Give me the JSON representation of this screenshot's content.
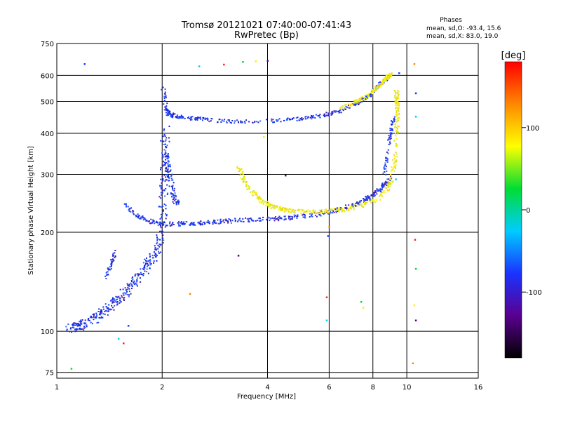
{
  "chart_data": {
    "type": "scatter",
    "title": "Tromsø 20121021 07:40:00-07:41:43",
    "subtitle": "RwPretec (Bp)",
    "xlabel": "Frequency [MHz]",
    "ylabel": "Stationary phase Virtual Height [km]",
    "x_scale": "log",
    "y_scale": "log",
    "xlim": [
      1,
      16
    ],
    "ylim": [
      72,
      750
    ],
    "x_ticks": [
      1,
      2,
      4,
      6,
      8,
      10,
      16
    ],
    "y_ticks": [
      75,
      100,
      200,
      300,
      400,
      500,
      600,
      750
    ],
    "grid": true,
    "legend_title": "Phases",
    "legend_lines": [
      "mean, sd,O: -93.4, 15.6",
      "mean, sd,X:  83.0, 19.0"
    ],
    "colorbar": {
      "unit": "[deg]",
      "range": [
        -180,
        180
      ],
      "ticks": [
        100,
        0,
        -100
      ],
      "tick_labels": [
        "100",
        "0",
        "-100"
      ],
      "colors": [
        "#000000",
        "#5a0090",
        "#1a33ff",
        "#00ccff",
        "#00dd33",
        "#ffff00",
        "#ff8800",
        "#ff0000"
      ]
    },
    "series": [
      {
        "name": "O",
        "phase_mean": -93.4,
        "traces": [
          {
            "x": [
              1.08,
              1.15,
              1.25,
              1.35,
              1.45,
              1.55,
              1.65,
              1.75,
              1.85,
              1.95,
              2.0,
              2.02,
              2.04
            ],
            "y": [
              103,
              104,
              108,
              115,
              122,
              130,
              140,
              152,
              165,
              185,
              220,
              300,
              420
            ]
          },
          {
            "x": [
              2.0,
              2.04,
              2.08,
              2.14,
              2.25,
              2.5,
              2.8,
              3.2,
              3.8,
              4.5,
              5.2,
              5.8,
              6.4,
              7.0,
              7.6,
              8.1,
              8.5,
              8.8
            ],
            "y": [
              560,
              480,
              460,
              455,
              450,
              445,
              440,
              436,
              437,
              441,
              448,
              457,
              470,
              490,
              515,
              545,
              575,
              600
            ]
          },
          {
            "x": [
              1.55,
              1.7,
              1.85,
              2.0,
              2.2,
              2.5,
              2.8,
              3.2,
              3.8,
              4.5,
              5.3,
              6.0,
              6.6,
              7.2,
              7.7,
              8.2,
              8.6,
              8.9
            ],
            "y": [
              245,
              225,
              217,
              214,
              213,
              214,
              216,
              218,
              220,
              222,
              226,
              232,
              238,
              246,
              255,
              266,
              280,
              295
            ]
          },
          {
            "x": [
              2.0,
              2.05,
              2.1,
              2.15,
              2.2
            ],
            "y": [
              380,
              330,
              290,
              262,
              245
            ]
          },
          {
            "x": [
              8.6,
              8.7,
              8.8,
              8.9,
              9.0,
              9.1
            ],
            "y": [
              300,
              330,
              360,
              390,
              420,
              450
            ]
          },
          {
            "x": [
              1.38,
              1.42,
              1.46
            ],
            "y": [
              145,
              160,
              175
            ]
          }
        ]
      },
      {
        "name": "X",
        "phase_mean": 83.0,
        "traces": [
          {
            "x": [
              3.3,
              3.4,
              3.6,
              3.8,
              4.0,
              4.3,
              4.6,
              5.0,
              5.4,
              5.9,
              6.4,
              7.0,
              7.6,
              8.2,
              8.7,
              9.0,
              9.2,
              9.3
            ],
            "y": [
              320,
              290,
              266,
              252,
              243,
              238,
              234,
              232,
              232,
              233,
              235,
              239,
              245,
              254,
              268,
              290,
              330,
              400
            ]
          },
          {
            "x": [
              9.3,
              9.35,
              9.35,
              9.3
            ],
            "y": [
              400,
              450,
              500,
              540
            ]
          },
          {
            "x": [
              6.4,
              7.0,
              7.5,
              8.0,
              8.4,
              8.7,
              9.0
            ],
            "y": [
              480,
              495,
              515,
              540,
              565,
              590,
              610
            ]
          }
        ]
      }
    ],
    "scattered_points": [
      {
        "x": 1.2,
        "y": 650
      },
      {
        "x": 2.55,
        "y": 640
      },
      {
        "x": 3.0,
        "y": 648
      },
      {
        "x": 3.4,
        "y": 660
      },
      {
        "x": 3.7,
        "y": 663
      },
      {
        "x": 4.0,
        "y": 665
      },
      {
        "x": 10.5,
        "y": 650
      },
      {
        "x": 10.6,
        "y": 530
      },
      {
        "x": 10.6,
        "y": 450
      },
      {
        "x": 10.55,
        "y": 190
      },
      {
        "x": 10.6,
        "y": 155
      },
      {
        "x": 10.5,
        "y": 120
      },
      {
        "x": 10.6,
        "y": 108
      },
      {
        "x": 10.4,
        "y": 80
      },
      {
        "x": 5.95,
        "y": 195
      },
      {
        "x": 5.9,
        "y": 108
      },
      {
        "x": 5.9,
        "y": 127
      },
      {
        "x": 7.4,
        "y": 123
      },
      {
        "x": 7.5,
        "y": 118
      },
      {
        "x": 3.3,
        "y": 170
      },
      {
        "x": 2.4,
        "y": 130
      },
      {
        "x": 1.6,
        "y": 104
      },
      {
        "x": 1.5,
        "y": 95
      },
      {
        "x": 1.55,
        "y": 92
      },
      {
        "x": 1.1,
        "y": 77
      },
      {
        "x": 3.9,
        "y": 390
      },
      {
        "x": 4.5,
        "y": 298
      },
      {
        "x": 6.0,
        "y": 208
      },
      {
        "x": 9.5,
        "y": 610
      },
      {
        "x": 9.3,
        "y": 290
      }
    ]
  }
}
